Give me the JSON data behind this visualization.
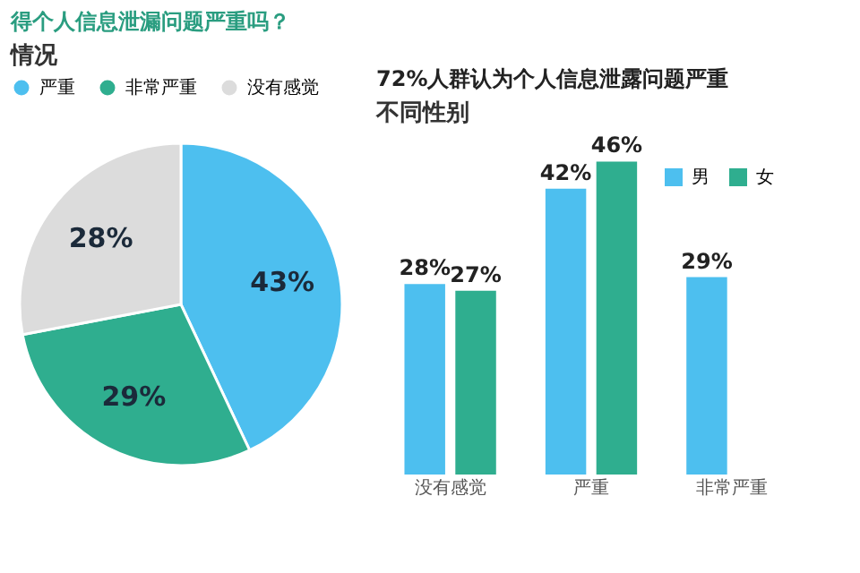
{
  "chart_data": [
    {
      "type": "pie",
      "title": "得个人信息泄漏问题严重吗？",
      "subtitle": "情况",
      "categories": [
        "严重",
        "非常严重",
        "没有感觉"
      ],
      "values": [
        43,
        29,
        28
      ],
      "colors": [
        "#4dbfef",
        "#2fae8f",
        "#dcdcdc"
      ],
      "value_labels": [
        "43%",
        "29%",
        "28%"
      ],
      "legend": "top"
    },
    {
      "type": "bar",
      "title": "72%人群认为个人信息泄露问题严重",
      "subtitle": "不同性别",
      "categories": [
        "没有感觉",
        "严重",
        "非常严重"
      ],
      "series": [
        {
          "name": "男",
          "color": "#4dbfef",
          "values": [
            28,
            42,
            29
          ],
          "value_labels": [
            "28%",
            "42%",
            "29%"
          ]
        },
        {
          "name": "女",
          "color": "#2fae8f",
          "values": [
            27,
            46,
            null
          ],
          "value_labels": [
            "27%",
            "46%",
            null
          ]
        }
      ],
      "legend": "top right"
    }
  ]
}
